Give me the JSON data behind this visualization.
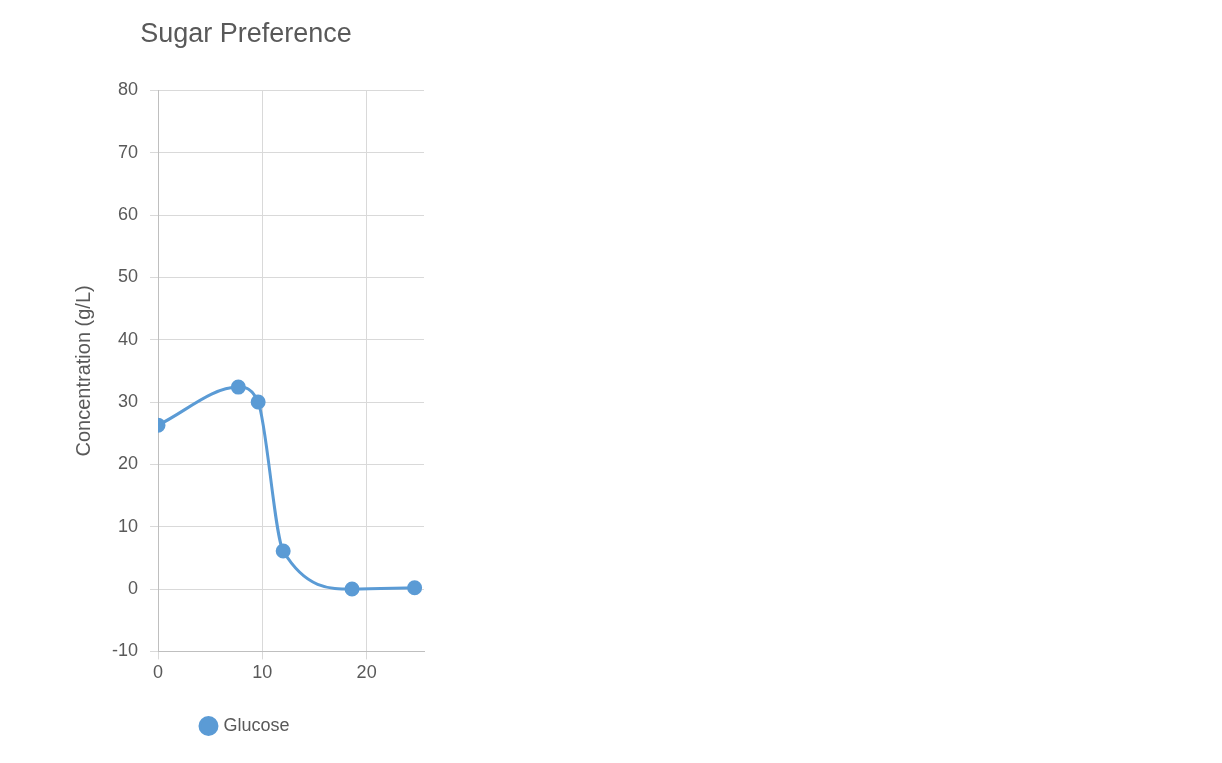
{
  "chart_data": {
    "type": "line",
    "title": "Sugar Preference",
    "ylabel": "Concentration (g/L)",
    "series": [
      {
        "name": "Glucose",
        "color": "#5b9bd5",
        "x": [
          0,
          7.7,
          9.6,
          12,
          18.6,
          24.6
        ],
        "values": [
          26.3,
          32.4,
          30,
          6.1,
          0,
          0.2
        ]
      }
    ],
    "xlim": [
      0,
      25.5
    ],
    "xticks": [
      0,
      10,
      20
    ],
    "ylim": [
      -10,
      80
    ],
    "yticks": [
      -10,
      0,
      10,
      20,
      30,
      40,
      50,
      60,
      70,
      80
    ],
    "grid": true,
    "legend": "bottom",
    "marker": "circle",
    "line_style": "solid"
  }
}
